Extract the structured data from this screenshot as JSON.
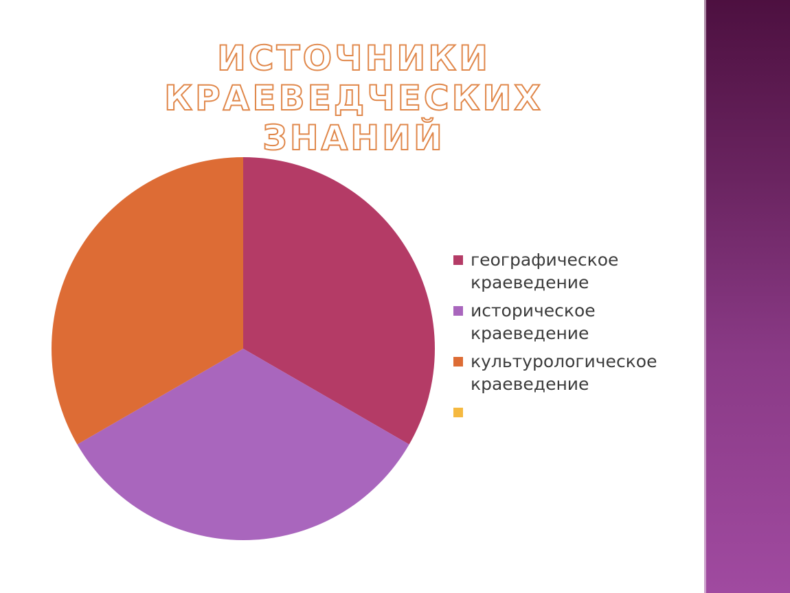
{
  "slide": {
    "title_line1": "ИСТОЧНИКИ КРАЕВЕДЧЕСКИХ",
    "title_line2": "ЗНАНИЙ"
  },
  "chart_data": {
    "type": "pie",
    "title": "",
    "start_angle_deg": 0,
    "direction": "clockwise",
    "legend_position": "right",
    "slices": [
      {
        "label": "географическое краеведение",
        "value": 1,
        "color": "#b43b66"
      },
      {
        "label": "историческое краеведение",
        "value": 1,
        "color": "#a966bd"
      },
      {
        "label": "культурологическое краеведение",
        "value": 1,
        "color": "#dd6c35"
      },
      {
        "label": "",
        "value": 0,
        "color": "#f5b940"
      }
    ]
  },
  "theme": {
    "title_outline_color": "#e0874a",
    "side_band_color": "#7a2f72"
  }
}
